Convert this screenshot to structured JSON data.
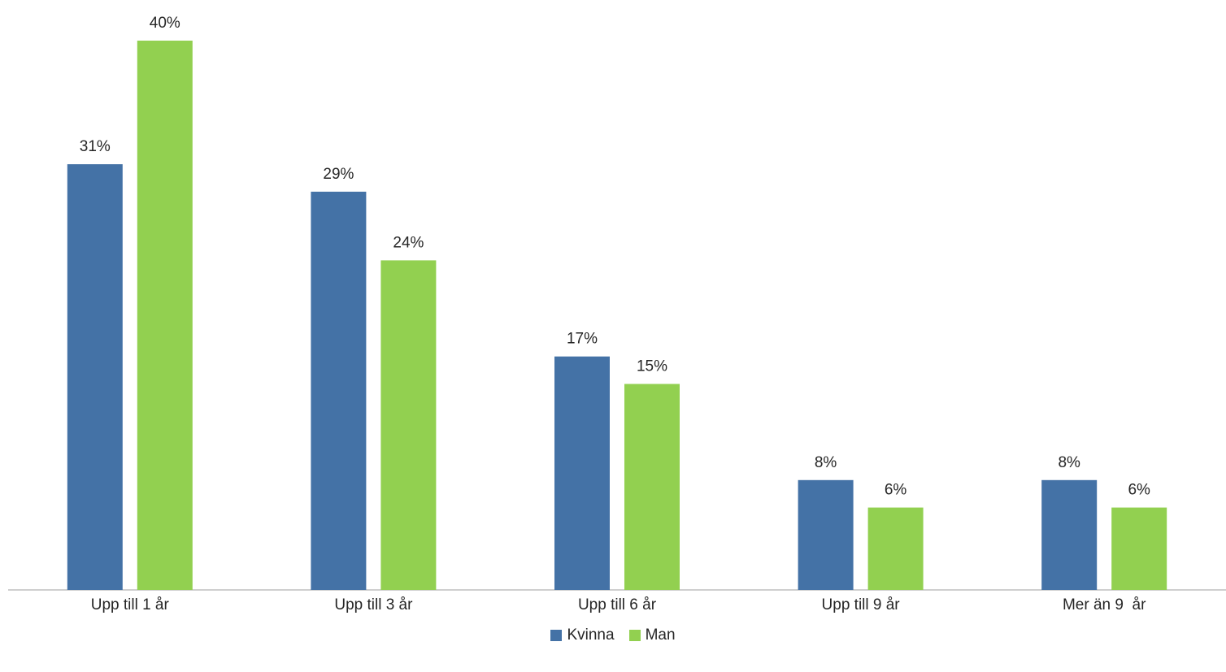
{
  "chart_data": {
    "type": "bar",
    "categories": [
      "Upp till 1 år",
      "Upp till 3 år",
      "Upp till 6 år",
      "Upp till 9 år",
      "Mer än 9  år"
    ],
    "series": [
      {
        "name": "Kvinna",
        "values": [
          31,
          29,
          17,
          8,
          8
        ],
        "labels": [
          "31%",
          "29%",
          "17%",
          "8%",
          "8%"
        ],
        "color": "#4472a6"
      },
      {
        "name": "Man",
        "values": [
          40,
          24,
          15,
          6,
          6
        ],
        "labels": [
          "40%",
          "24%",
          "15%",
          "6%",
          "6%"
        ],
        "color": "#92d050"
      }
    ],
    "title": "",
    "xlabel": "",
    "ylabel": "",
    "ylim": [
      0,
      40
    ],
    "grid": false,
    "legend_position": "bottom"
  }
}
